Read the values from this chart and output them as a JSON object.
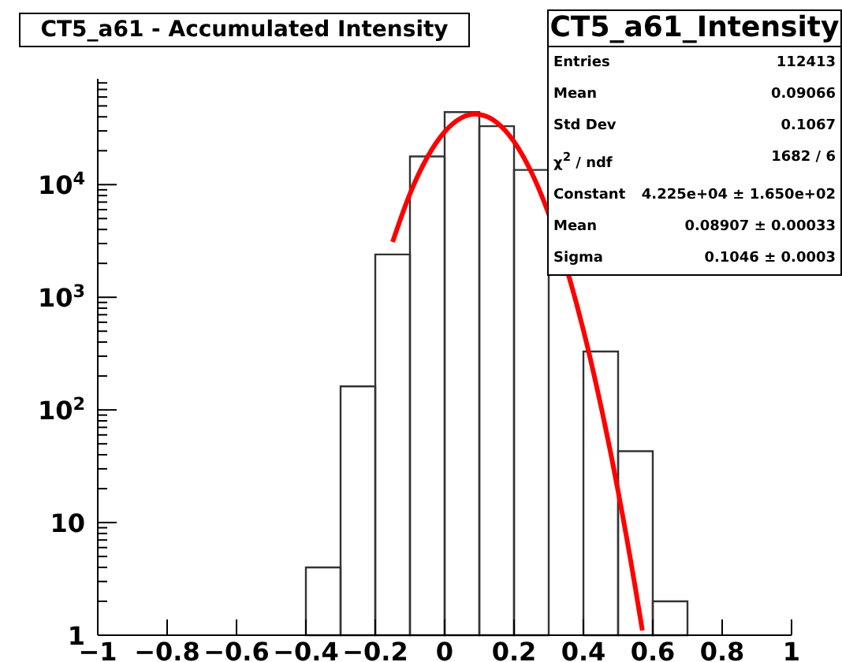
{
  "chart_data": {
    "type": "histogram",
    "title": "CT5_a61 - Accumulated Intensity",
    "annotations": [
      "CT5_a61_Intensity",
      "Entries",
      "112413",
      "Mean",
      "0.09066",
      "Std Dev",
      "0.1067",
      "χ$^{2}$ / ndf",
      "1682 / 6",
      "Constant",
      "4.225e+04 ± 1.650e+02",
      "Mean",
      "0.08907 ± 0.00033",
      "Sigma",
      "0.1046 ± 0.0003"
    ],
    "bins": [
      -0.4,
      -0.3,
      -0.2,
      -0.1,
      0,
      0.1,
      0.2,
      0.3,
      0.4,
      0.5,
      0.6,
      0.7
    ],
    "series": [
      {
        "color": "#333333",
        "values": [
          4,
          162,
          2400,
          17800,
          44000,
          33000,
          13500,
          null,
          330,
          43,
          2
        ]
      },
      {
        "type": "line",
        "color": "#ff0000",
        "x": [
          -0.15,
          -0.1,
          -0.05,
          0,
          0.05,
          0.089,
          0.1,
          0.15,
          0.2,
          0.25,
          0.38,
          0.4,
          0.45,
          0.5,
          0.55,
          0.57
        ],
        "values": [
          3100,
          8300,
          17500,
          29400,
          39400,
          42250,
          42000,
          35700,
          24100,
          12900,
          880,
          510,
          110,
          19,
          2.6,
          1.1
        ]
      }
    ],
    "xlim": [
      -1,
      1
    ],
    "xticks": [
      {
        "value": -1,
        "label": "−1"
      },
      {
        "value": -0.8,
        "label": "−0.8"
      },
      {
        "value": -0.6,
        "label": "−0.6"
      },
      {
        "value": -0.4,
        "label": "−0.4"
      },
      {
        "value": -0.2,
        "label": "−0.2"
      },
      0,
      0.2,
      0.4,
      0.6,
      0.8,
      1
    ],
    "ylim": [
      1,
      87000
    ],
    "log": "y",
    "yticks": [
      1,
      {
        "value": 2,
        "label": null
      },
      {
        "value": 3,
        "label": null
      },
      {
        "value": 4,
        "label": null
      },
      {
        "value": 5,
        "label": null
      },
      {
        "value": 6,
        "label": null
      },
      {
        "value": 7,
        "label": null
      },
      {
        "value": 8,
        "label": null
      },
      {
        "value": 9,
        "label": null
      },
      10,
      {
        "value": 20,
        "label": null
      },
      {
        "value": 30,
        "label": null
      },
      {
        "value": 40,
        "label": null
      },
      {
        "value": 50,
        "label": null
      },
      {
        "value": 60,
        "label": null
      },
      {
        "value": 70,
        "label": null
      },
      {
        "value": 80,
        "label": null
      },
      {
        "value": 90,
        "label": null
      },
      {
        "value": 100,
        "label": "10$^{2}$"
      },
      {
        "value": 200,
        "label": null
      },
      {
        "value": 300,
        "label": null
      },
      {
        "value": 400,
        "label": null
      },
      {
        "value": 500,
        "label": null
      },
      {
        "value": 600,
        "label": null
      },
      {
        "value": 700,
        "label": null
      },
      {
        "value": 800,
        "label": null
      },
      {
        "value": 900,
        "label": null
      },
      {
        "value": 1000,
        "label": "10$^{3}$"
      },
      {
        "value": 2000,
        "label": null
      },
      {
        "value": 3000,
        "label": null
      },
      {
        "value": 4000,
        "label": null
      },
      {
        "value": 5000,
        "label": null
      },
      {
        "value": 6000,
        "label": null
      },
      {
        "value": 7000,
        "label": null
      },
      {
        "value": 8000,
        "label": null
      },
      {
        "value": 9000,
        "label": null
      },
      {
        "value": 10000,
        "label": "10$^{4}$"
      },
      {
        "value": 20000,
        "label": null
      },
      {
        "value": 30000,
        "label": null
      },
      {
        "value": 40000,
        "label": null
      },
      {
        "value": 50000,
        "label": null
      },
      {
        "value": 60000,
        "label": null
      },
      {
        "value": 70000,
        "label": null
      },
      {
        "value": 80000,
        "label": null
      }
    ]
  }
}
